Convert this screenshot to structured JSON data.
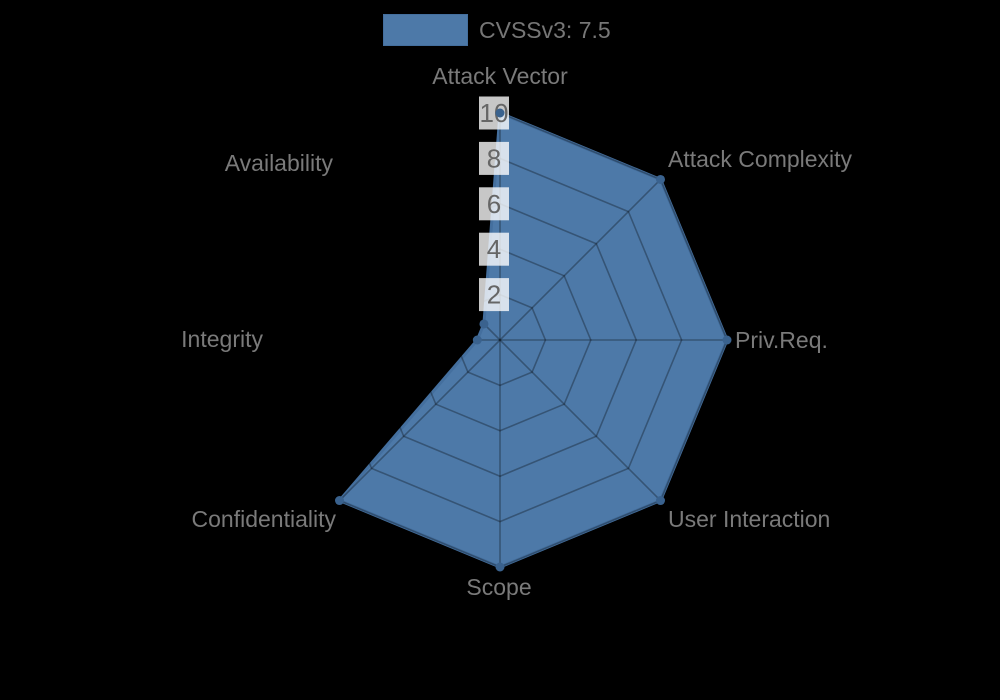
{
  "canvas": {
    "background": "#000000"
  },
  "legend": {
    "label": "CVSSv3: 7.5",
    "position": "top"
  },
  "chart_data": {
    "type": "radar",
    "title": "",
    "categories": [
      "Attack Vector",
      "Attack Complexity",
      "Priv.Req.",
      "User Interaction",
      "Scope",
      "Confidentiality",
      "Integrity",
      "Availability"
    ],
    "series": [
      {
        "name": "CVSSv3: 7.5",
        "values": [
          10,
          10,
          10,
          10,
          10,
          10,
          1,
          1
        ]
      }
    ],
    "radial_axis": {
      "ticks": [
        2,
        4,
        6,
        8,
        10
      ],
      "range": [
        0,
        10
      ],
      "grid": "on",
      "grid_shape": "linear",
      "tick_backdrop": true
    },
    "legend_position": "top"
  },
  "colors": {
    "series_fill": "#4d79a8",
    "series_border": "#446f9e",
    "point_marker": "#3a628e",
    "grid_line": "rgba(0,0,0,0.3)",
    "tick_text": "#666666",
    "tick_backdrop": "rgba(255,255,255,0.78)",
    "axis_label_text": "#7a7a7a",
    "legend_text": "#767676",
    "background": "#000000"
  }
}
